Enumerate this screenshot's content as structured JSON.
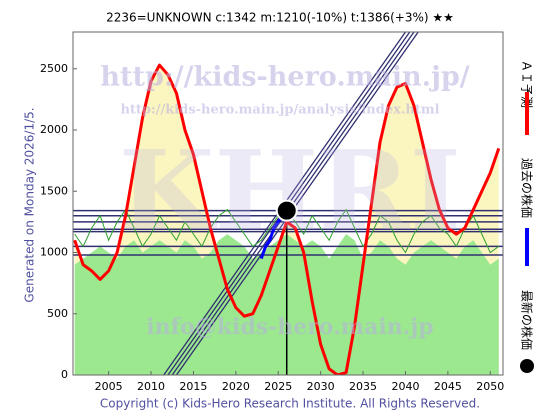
{
  "header": "2236=UNKNOWN    c:1342  m:1210(-10%)  t:1386(+3%)  ★★",
  "side_note": "Generated on Monday 2026/1/5.",
  "copyright": "Copyright (c) Kids-Hero Research Institute. All Rights Reserved.",
  "watermarks": [
    "http://kids-hero.main.jp/",
    "http://kids-hero.main.jp/analysis/index.html",
    "KHRI",
    "info@kids-hero.main.jp"
  ],
  "chart_data": {
    "type": "line",
    "xlim": [
      2000.8,
      2051.5
    ],
    "ylim": [
      0,
      2800
    ],
    "xticks": [
      2005,
      2010,
      2015,
      2020,
      2025,
      2030,
      2035,
      2040,
      2045,
      2050
    ],
    "yticks": [
      0,
      500,
      1000,
      1500,
      2000,
      2500
    ],
    "x": [
      2001,
      2002,
      2003,
      2004,
      2005,
      2006,
      2007,
      2008,
      2009,
      2010,
      2011,
      2012,
      2013,
      2014,
      2015,
      2016,
      2017,
      2018,
      2019,
      2020,
      2021,
      2022,
      2023,
      2024,
      2025,
      2026,
      2027,
      2028,
      2029,
      2030,
      2031,
      2032,
      2033,
      2034,
      2035,
      2036,
      2037,
      2038,
      2039,
      2040,
      2041,
      2042,
      2043,
      2044,
      2045,
      2046,
      2047,
      2048,
      2049,
      2050,
      2051
    ],
    "areas": [
      {
        "color": "#fbf5c0",
        "values": [
          1100,
          900,
          850,
          780,
          850,
          1000,
          1300,
          1700,
          2100,
          2400,
          2530,
          2450,
          2300,
          2000,
          1800,
          1500,
          1200,
          950,
          700,
          550,
          480,
          500,
          650,
          850,
          1050,
          1250,
          1200,
          1000,
          600,
          250,
          50,
          0,
          20,
          400,
          900,
          1400,
          1900,
          2200,
          2350,
          2380,
          2200,
          1900,
          1600,
          1350,
          1200,
          1150,
          1200,
          1350,
          1500,
          1650,
          1850
        ]
      },
      {
        "color": "#9be88f",
        "values": [
          900,
          950,
          1000,
          1050,
          1000,
          950,
          1050,
          1100,
          1000,
          1050,
          1100,
          1050,
          1000,
          1100,
          1050,
          950,
          1000,
          1100,
          1150,
          1100,
          1050,
          950,
          1000,
          1050,
          1100,
          1150,
          1100,
          1050,
          1100,
          1050,
          950,
          1050,
          1150,
          1100,
          950,
          1000,
          1100,
          1050,
          950,
          900,
          1000,
          1050,
          1100,
          1050,
          1000,
          950,
          1050,
          1100,
          1000,
          900,
          950
        ]
      }
    ],
    "levels": {
      "color": "#303070",
      "values": [
        1342,
        1300,
        1250,
        1190,
        1170,
        1050,
        980
      ]
    },
    "channels": {
      "color": "#303070",
      "lines": [
        {
          "x": [
            2011.5,
            2040
          ],
          "values": [
            0,
            2800
          ]
        },
        {
          "x": [
            2012,
            2040.5
          ],
          "values": [
            0,
            2800
          ]
        },
        {
          "x": [
            2012.5,
            2041
          ],
          "values": [
            0,
            2800
          ]
        },
        {
          "x": [
            2013,
            2041.5
          ],
          "values": [
            0,
            2800
          ]
        }
      ]
    },
    "series": [
      {
        "name": "ＡＩ予測",
        "color": "#ff0000",
        "width": 3,
        "values": [
          1100,
          900,
          850,
          780,
          850,
          1000,
          1300,
          1700,
          2100,
          2400,
          2530,
          2450,
          2300,
          2000,
          1800,
          1500,
          1200,
          950,
          700,
          550,
          480,
          500,
          650,
          850,
          1050,
          1250,
          1200,
          1000,
          600,
          250,
          50,
          0,
          20,
          400,
          900,
          1400,
          1900,
          2200,
          2350,
          2380,
          2200,
          1900,
          1600,
          1350,
          1200,
          1150,
          1200,
          1350,
          1500,
          1650,
          1850
        ]
      },
      {
        "name": "過去の株価",
        "color": "#0000ff",
        "width": 3,
        "x": [
          2023,
          2023.5,
          2024,
          2024.5,
          2025,
          2025.5,
          2026
        ],
        "values": [
          950,
          1050,
          1100,
          1200,
          1250,
          1300,
          1342
        ]
      }
    ],
    "green_line": {
      "color": "#2e9e2e",
      "values": [
        1150,
        1050,
        1200,
        1300,
        1100,
        1250,
        1350,
        1200,
        1050,
        1150,
        1300,
        1200,
        1100,
        1250,
        1150,
        1050,
        1200,
        1300,
        1350,
        1250,
        1150,
        1050,
        1100,
        1200,
        1300,
        1350,
        1250,
        1150,
        1300,
        1200,
        1100,
        1250,
        1350,
        1200,
        1050,
        1150,
        1300,
        1250,
        1100,
        1000,
        1150,
        1250,
        1300,
        1200,
        1150,
        1050,
        1200,
        1300,
        1150,
        1000,
        1050
      ]
    },
    "latest": {
      "name": "最新の株価",
      "x": 2026,
      "value": 1342,
      "color": "#000000"
    }
  }
}
